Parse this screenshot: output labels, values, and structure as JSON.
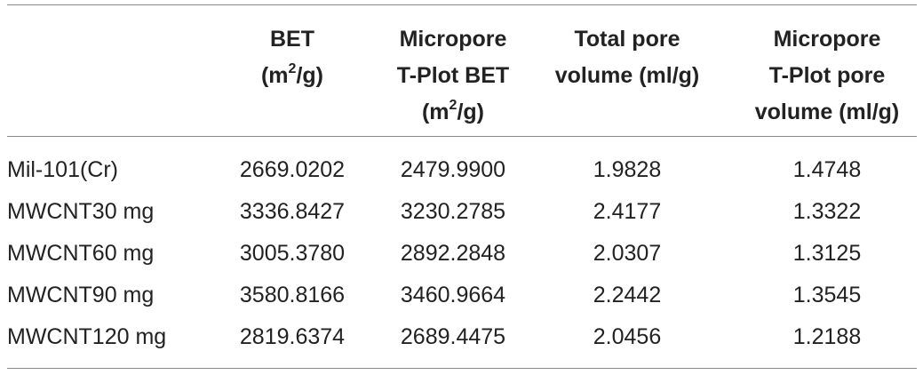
{
  "table": {
    "headers": {
      "sample": "",
      "bet_line1": "BET",
      "bet_unit_pre": "(m",
      "bet_unit_sup": "2",
      "bet_unit_post": "/g)",
      "mbet_line1": "Micropore",
      "mbet_line2": "T-Plot BET",
      "mbet_unit_pre": "(m",
      "mbet_unit_sup": "2",
      "mbet_unit_post": "/g)",
      "tpv_line1": "Total pore",
      "tpv_line2": "volume (ml/g)",
      "mpv_line1": "Micropore",
      "mpv_line2": "T-Plot pore",
      "mpv_line3": "volume (ml/g)"
    },
    "rows": [
      {
        "sample": "Mil-101(Cr)",
        "bet": "2669.0202",
        "mbet": "2479.9900",
        "tpv": "1.9828",
        "mpv": "1.4748"
      },
      {
        "sample": "MWCNT30 mg",
        "bet": "3336.8427",
        "mbet": "3230.2785",
        "tpv": "2.4177",
        "mpv": "1.3322"
      },
      {
        "sample": "MWCNT60 mg",
        "bet": "3005.3780",
        "mbet": "2892.2848",
        "tpv": "2.0307",
        "mpv": "1.3125"
      },
      {
        "sample": "MWCNT90 mg",
        "bet": "3580.8166",
        "mbet": "3460.9664",
        "tpv": "2.2442",
        "mpv": "1.3545"
      },
      {
        "sample": "MWCNT120 mg",
        "bet": "2819.6374",
        "mbet": "2689.4475",
        "tpv": "2.0456",
        "mpv": "1.2188"
      }
    ]
  }
}
